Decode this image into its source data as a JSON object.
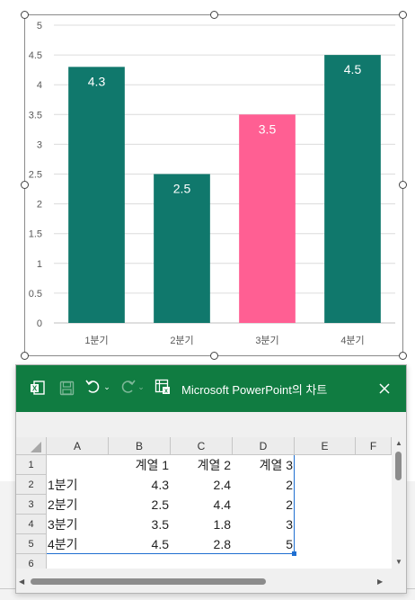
{
  "chart_data": {
    "type": "bar",
    "categories": [
      "1분기",
      "2분기",
      "3분기",
      "4분기"
    ],
    "values": [
      4.3,
      2.5,
      3.5,
      4.5
    ],
    "data_labels": [
      "4.3",
      "2.5",
      "3.5",
      "4.5"
    ],
    "ylim": [
      0,
      5
    ],
    "yticks": [
      "0",
      "0.5",
      "1",
      "1.5",
      "2",
      "2.5",
      "3",
      "3.5",
      "4",
      "4.5",
      "5"
    ],
    "grid": true,
    "bar_colors": [
      "#10786c",
      "#10786c",
      "#ff5f93",
      "#10786c"
    ],
    "title": "",
    "xlabel": "",
    "ylabel": ""
  },
  "excel_window": {
    "title": "Microsoft PowerPoint의 차트",
    "icons": [
      "excel-app-icon",
      "save-icon",
      "undo-icon",
      "redo-icon",
      "edit-data-in-excel-icon",
      "close-icon"
    ],
    "columns": [
      "A",
      "B",
      "C",
      "D",
      "E",
      "F"
    ],
    "rows": [
      "1",
      "2",
      "3",
      "4",
      "5",
      "6"
    ],
    "header_row": [
      "",
      "계열 1",
      "계열 2",
      "계열 3"
    ],
    "data_rows": [
      [
        "1분기",
        "4.3",
        "2.4",
        "2"
      ],
      [
        "2분기",
        "2.5",
        "4.4",
        "2"
      ],
      [
        "3분기",
        "3.5",
        "1.8",
        "3"
      ],
      [
        "4분기",
        "4.5",
        "2.8",
        "5"
      ]
    ]
  }
}
